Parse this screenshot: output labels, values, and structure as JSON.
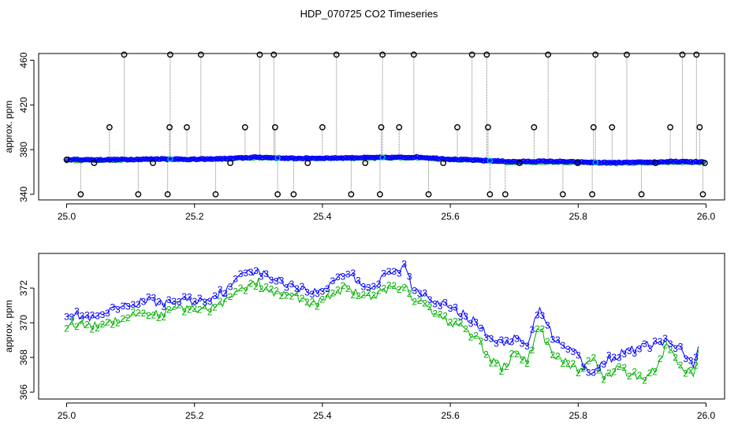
{
  "title": "HDP_070725  CO2 Timeseries",
  "colors": {
    "raw": "#000000",
    "line3": "#0000ff",
    "line2": "#00b000",
    "trace": "#808080",
    "cyan": "#00c8c8"
  },
  "chart_data": [
    {
      "type": "scatter",
      "ylabel": "approx. ppm",
      "xlabel": "",
      "xlim": [
        25.0,
        26.0
      ],
      "ylim": [
        335,
        466
      ],
      "xticks": [
        "25.0",
        "25.2",
        "25.4",
        "25.6",
        "25.8",
        "26.0"
      ],
      "yticks": [
        "340",
        "380",
        "420",
        "460"
      ],
      "grid": false,
      "baseline_series": [
        {
          "name": "3",
          "points": [
            [
              25.0,
              371.2
            ],
            [
              25.05,
              370.9
            ],
            [
              25.1,
              371.3
            ],
            [
              25.15,
              371.8
            ],
            [
              25.2,
              371.3
            ],
            [
              25.25,
              372.0
            ],
            [
              25.3,
              373.3
            ],
            [
              25.35,
              372.2
            ],
            [
              25.4,
              372.4
            ],
            [
              25.45,
              372.8
            ],
            [
              25.5,
              372.9
            ],
            [
              25.55,
              373.3
            ],
            [
              25.6,
              371.5
            ],
            [
              25.65,
              370.4
            ],
            [
              25.7,
              369.2
            ],
            [
              25.75,
              369.6
            ],
            [
              25.8,
              368.9
            ],
            [
              25.85,
              368.3
            ],
            [
              25.9,
              368.6
            ],
            [
              25.95,
              369.3
            ],
            [
              25.99,
              369.0
            ]
          ]
        },
        {
          "name": "2",
          "points": [
            [
              25.0,
              370.2
            ],
            [
              25.05,
              370.2
            ],
            [
              25.1,
              370.6
            ],
            [
              25.15,
              371.0
            ],
            [
              25.2,
              370.8
            ],
            [
              25.25,
              371.4
            ],
            [
              25.3,
              372.6
            ],
            [
              25.35,
              371.7
            ],
            [
              25.4,
              371.8
            ],
            [
              25.45,
              372.1
            ],
            [
              25.5,
              372.2
            ],
            [
              25.55,
              372.5
            ],
            [
              25.6,
              370.8
            ],
            [
              25.65,
              369.5
            ],
            [
              25.7,
              368.2
            ],
            [
              25.75,
              368.6
            ],
            [
              25.8,
              368.0
            ],
            [
              25.85,
              367.4
            ],
            [
              25.9,
              367.7
            ],
            [
              25.95,
              368.4
            ],
            [
              25.99,
              368.2
            ]
          ]
        }
      ],
      "spikes": [
        {
          "x": 25.0,
          "y": 371
        },
        {
          "x": 25.022,
          "y": 340
        },
        {
          "x": 25.043,
          "y": 368
        },
        {
          "x": 25.067,
          "y": 400
        },
        {
          "x": 25.09,
          "y": 465
        },
        {
          "x": 25.112,
          "y": 340
        },
        {
          "x": 25.135,
          "y": 368
        },
        {
          "x": 25.158,
          "y": 340
        },
        {
          "x": 25.161,
          "y": 400
        },
        {
          "x": 25.162,
          "y": 465
        },
        {
          "x": 25.188,
          "y": 400
        },
        {
          "x": 25.21,
          "y": 465
        },
        {
          "x": 25.233,
          "y": 340
        },
        {
          "x": 25.256,
          "y": 368
        },
        {
          "x": 25.279,
          "y": 400
        },
        {
          "x": 25.302,
          "y": 465
        },
        {
          "x": 25.324,
          "y": 465
        },
        {
          "x": 25.326,
          "y": 400
        },
        {
          "x": 25.33,
          "y": 340
        },
        {
          "x": 25.355,
          "y": 340
        },
        {
          "x": 25.377,
          "y": 368
        },
        {
          "x": 25.4,
          "y": 400
        },
        {
          "x": 25.422,
          "y": 465
        },
        {
          "x": 25.445,
          "y": 340
        },
        {
          "x": 25.467,
          "y": 368
        },
        {
          "x": 25.49,
          "y": 340
        },
        {
          "x": 25.492,
          "y": 400
        },
        {
          "x": 25.494,
          "y": 465
        },
        {
          "x": 25.52,
          "y": 400
        },
        {
          "x": 25.543,
          "y": 465
        },
        {
          "x": 25.566,
          "y": 340
        },
        {
          "x": 25.589,
          "y": 368
        },
        {
          "x": 25.611,
          "y": 400
        },
        {
          "x": 25.634,
          "y": 465
        },
        {
          "x": 25.657,
          "y": 465
        },
        {
          "x": 25.659,
          "y": 400
        },
        {
          "x": 25.662,
          "y": 340
        },
        {
          "x": 25.686,
          "y": 340
        },
        {
          "x": 25.708,
          "y": 368
        },
        {
          "x": 25.731,
          "y": 400
        },
        {
          "x": 25.753,
          "y": 465
        },
        {
          "x": 25.776,
          "y": 340
        },
        {
          "x": 25.799,
          "y": 368
        },
        {
          "x": 25.822,
          "y": 340
        },
        {
          "x": 25.824,
          "y": 400
        },
        {
          "x": 25.827,
          "y": 465
        },
        {
          "x": 25.853,
          "y": 400
        },
        {
          "x": 25.876,
          "y": 465
        },
        {
          "x": 25.899,
          "y": 340
        },
        {
          "x": 25.921,
          "y": 368
        },
        {
          "x": 25.944,
          "y": 400
        },
        {
          "x": 25.963,
          "y": 465
        },
        {
          "x": 25.985,
          "y": 465
        },
        {
          "x": 25.99,
          "y": 400
        },
        {
          "x": 25.995,
          "y": 340
        },
        {
          "x": 25.998,
          "y": 368
        }
      ]
    },
    {
      "type": "line",
      "ylabel": "approx. ppm",
      "xlabel": "",
      "xlim": [
        25.0,
        26.0
      ],
      "ylim": [
        365.6,
        374.0
      ],
      "xticks": [
        "25.0",
        "25.2",
        "25.4",
        "25.6",
        "25.8",
        "26.0"
      ],
      "yticks": [
        "366",
        "368",
        "370",
        "372"
      ],
      "grid": false,
      "series": [
        {
          "name": "3",
          "marker": "3",
          "points": [
            [
              25.0,
              370.6
            ],
            [
              25.02,
              370.4
            ],
            [
              25.04,
              370.2
            ],
            [
              25.06,
              370.5
            ],
            [
              25.08,
              370.8
            ],
            [
              25.1,
              371.0
            ],
            [
              25.12,
              371.3
            ],
            [
              25.14,
              371.2
            ],
            [
              25.16,
              371.1
            ],
            [
              25.18,
              371.4
            ],
            [
              25.2,
              371.2
            ],
            [
              25.22,
              371.4
            ],
            [
              25.24,
              371.7
            ],
            [
              25.26,
              372.1
            ],
            [
              25.27,
              372.8
            ],
            [
              25.28,
              373.1
            ],
            [
              25.3,
              372.9
            ],
            [
              25.32,
              372.6
            ],
            [
              25.34,
              372.3
            ],
            [
              25.36,
              372.1
            ],
            [
              25.38,
              371.8
            ],
            [
              25.4,
              371.8
            ],
            [
              25.42,
              372.6
            ],
            [
              25.44,
              372.9
            ],
            [
              25.46,
              372.3
            ],
            [
              25.48,
              372.0
            ],
            [
              25.5,
              372.8
            ],
            [
              25.52,
              373.0
            ],
            [
              25.53,
              373.3
            ],
            [
              25.54,
              372.0
            ],
            [
              25.56,
              371.7
            ],
            [
              25.58,
              371.2
            ],
            [
              25.6,
              370.8
            ],
            [
              25.62,
              370.5
            ],
            [
              25.64,
              370.0
            ],
            [
              25.66,
              369.2
            ],
            [
              25.68,
              368.8
            ],
            [
              25.7,
              369.1
            ],
            [
              25.72,
              368.6
            ],
            [
              25.74,
              371.0
            ],
            [
              25.76,
              369.2
            ],
            [
              25.78,
              368.7
            ],
            [
              25.8,
              368.2
            ],
            [
              25.82,
              366.9
            ],
            [
              25.84,
              367.8
            ],
            [
              25.86,
              368.1
            ],
            [
              25.88,
              368.4
            ],
            [
              25.9,
              368.6
            ],
            [
              25.92,
              368.8
            ],
            [
              25.94,
              368.9
            ],
            [
              25.96,
              368.4
            ],
            [
              25.98,
              367.5
            ],
            [
              25.99,
              369.0
            ]
          ]
        },
        {
          "name": "2",
          "marker": "2",
          "points": [
            [
              25.0,
              369.9
            ],
            [
              25.02,
              369.9
            ],
            [
              25.04,
              369.8
            ],
            [
              25.06,
              370.0
            ],
            [
              25.08,
              370.2
            ],
            [
              25.1,
              370.4
            ],
            [
              25.12,
              370.6
            ],
            [
              25.14,
              370.5
            ],
            [
              25.16,
              370.6
            ],
            [
              25.18,
              370.9
            ],
            [
              25.2,
              370.7
            ],
            [
              25.22,
              370.8
            ],
            [
              25.24,
              371.1
            ],
            [
              25.26,
              371.5
            ],
            [
              25.27,
              371.8
            ],
            [
              25.28,
              372.0
            ],
            [
              25.3,
              372.3
            ],
            [
              25.32,
              371.7
            ],
            [
              25.34,
              371.6
            ],
            [
              25.36,
              371.5
            ],
            [
              25.38,
              371.1
            ],
            [
              25.4,
              371.2
            ],
            [
              25.42,
              371.8
            ],
            [
              25.44,
              372.0
            ],
            [
              25.46,
              371.6
            ],
            [
              25.48,
              371.4
            ],
            [
              25.5,
              371.9
            ],
            [
              25.52,
              372.1
            ],
            [
              25.53,
              372.2
            ],
            [
              25.54,
              371.4
            ],
            [
              25.56,
              371.1
            ],
            [
              25.58,
              370.5
            ],
            [
              25.6,
              370.0
            ],
            [
              25.62,
              369.7
            ],
            [
              25.64,
              369.2
            ],
            [
              25.66,
              368.0
            ],
            [
              25.68,
              367.4
            ],
            [
              25.7,
              368.1
            ],
            [
              25.72,
              367.8
            ],
            [
              25.74,
              369.8
            ],
            [
              25.76,
              368.0
            ],
            [
              25.78,
              367.8
            ],
            [
              25.8,
              367.2
            ],
            [
              25.82,
              368.0
            ],
            [
              25.84,
              366.9
            ],
            [
              25.86,
              367.3
            ],
            [
              25.88,
              367.1
            ],
            [
              25.9,
              366.8
            ],
            [
              25.92,
              367.4
            ],
            [
              25.94,
              368.8
            ],
            [
              25.96,
              367.5
            ],
            [
              25.98,
              367.0
            ],
            [
              25.99,
              368.8
            ]
          ]
        }
      ]
    }
  ]
}
